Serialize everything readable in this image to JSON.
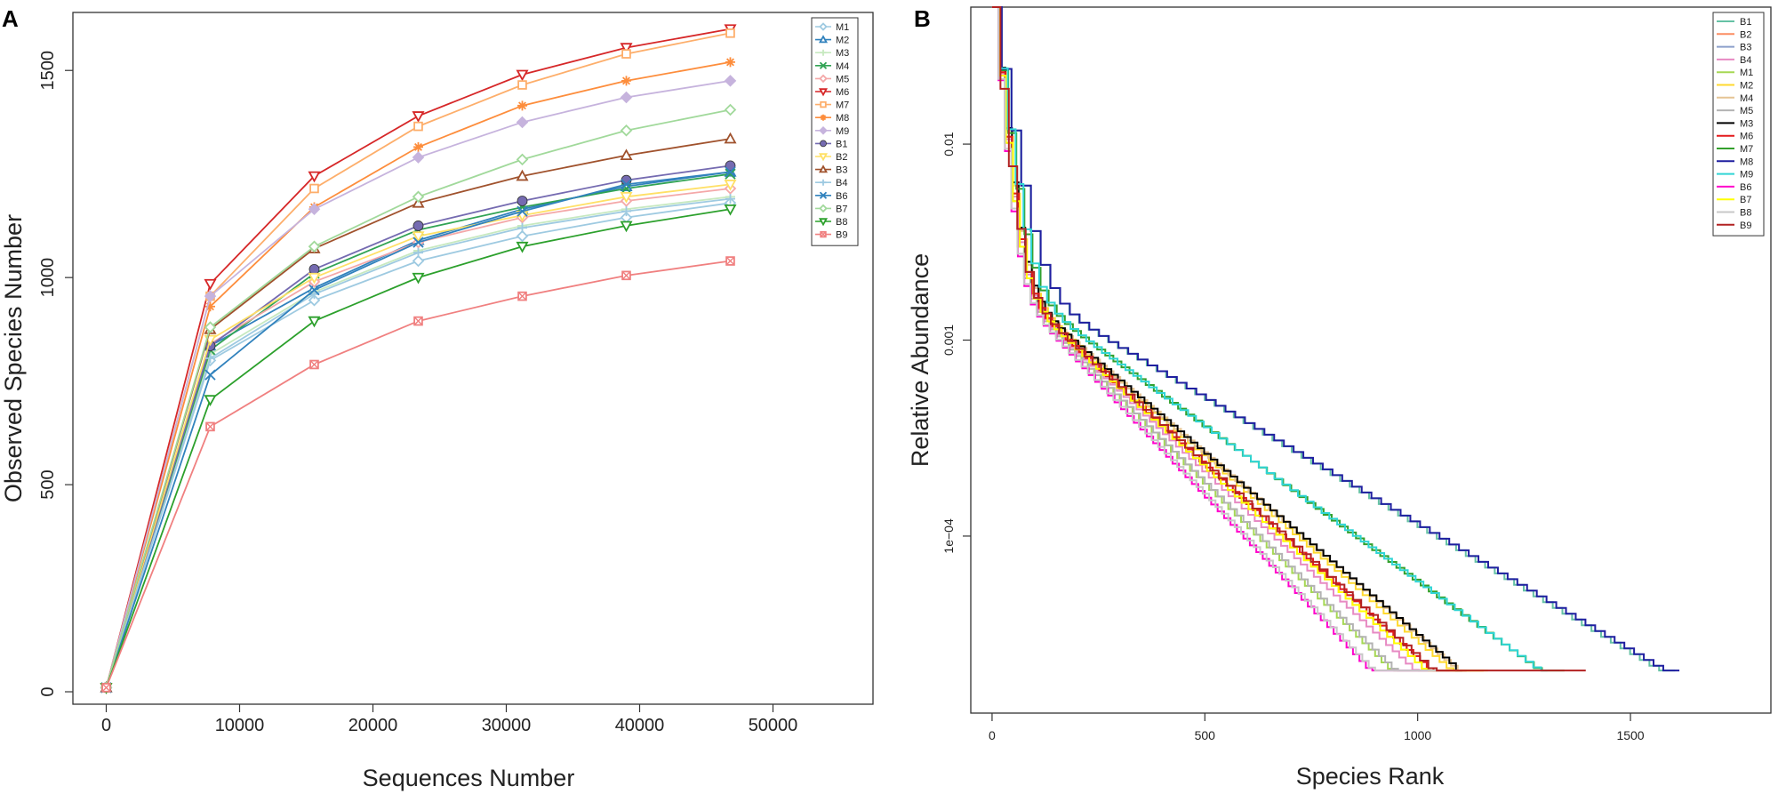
{
  "chart_data": [
    {
      "panel_label": "A",
      "type": "line",
      "xlabel": "Sequences Number",
      "ylabel": "Observed Species Number",
      "xlim": [
        -2500,
        57500
      ],
      "ylim": [
        -30,
        1640
      ],
      "xticks": [
        0,
        10000,
        20000,
        30000,
        40000,
        50000
      ],
      "xtick_labels": [
        "0",
        "10000",
        "20000",
        "30000",
        "40000",
        "50000"
      ],
      "yticks": [
        0,
        500,
        1000,
        1500
      ],
      "ytick_labels": [
        "0",
        "500",
        "1000",
        "1500"
      ],
      "legend_position": "top-right",
      "x": [
        0,
        7800,
        15600,
        23400,
        31200,
        39000,
        46800
      ],
      "series": [
        {
          "name": "M1",
          "color": "#9ecae1",
          "marker": "diamond-open",
          "values": [
            10,
            800,
            945,
            1040,
            1100,
            1145,
            1180
          ]
        },
        {
          "name": "M2",
          "color": "#3182bd",
          "marker": "triangle-open",
          "values": [
            10,
            835,
            975,
            1090,
            1165,
            1220,
            1255
          ]
        },
        {
          "name": "M3",
          "color": "#c7e9c0",
          "marker": "plus",
          "values": [
            10,
            815,
            965,
            1065,
            1125,
            1165,
            1195
          ]
        },
        {
          "name": "M4",
          "color": "#31a354",
          "marker": "x",
          "values": [
            10,
            825,
            1010,
            1115,
            1170,
            1215,
            1250
          ]
        },
        {
          "name": "M5",
          "color": "#f4a8a8",
          "marker": "diamond-open",
          "values": [
            10,
            840,
            990,
            1085,
            1145,
            1185,
            1215
          ]
        },
        {
          "name": "M6",
          "color": "#d62728",
          "marker": "triangle-down-open",
          "values": [
            10,
            985,
            1245,
            1390,
            1490,
            1555,
            1600
          ]
        },
        {
          "name": "M7",
          "color": "#fdae6b",
          "marker": "square-open",
          "values": [
            10,
            955,
            1215,
            1365,
            1465,
            1540,
            1590
          ]
        },
        {
          "name": "M8",
          "color": "#fd8d3c",
          "marker": "asterisk",
          "values": [
            10,
            930,
            1170,
            1315,
            1415,
            1475,
            1520
          ]
        },
        {
          "name": "M9",
          "color": "#c6b3dd",
          "marker": "diamond-filled",
          "values": [
            10,
            955,
            1165,
            1290,
            1375,
            1435,
            1475
          ]
        },
        {
          "name": "B1",
          "color": "#756bb1",
          "marker": "circle-filled",
          "values": [
            10,
            835,
            1020,
            1125,
            1185,
            1235,
            1270
          ]
        },
        {
          "name": "B2",
          "color": "#ffe066",
          "marker": "triangle-down-open",
          "values": [
            10,
            850,
            1000,
            1100,
            1150,
            1195,
            1225
          ]
        },
        {
          "name": "B3",
          "color": "#a0522d",
          "marker": "triangle-open",
          "values": [
            10,
            875,
            1070,
            1180,
            1245,
            1295,
            1335
          ]
        },
        {
          "name": "B4",
          "color": "#9ecae1",
          "marker": "plus",
          "values": [
            10,
            805,
            960,
            1060,
            1120,
            1160,
            1190
          ]
        },
        {
          "name": "B6",
          "color": "#3182bd",
          "marker": "x",
          "values": [
            10,
            765,
            970,
            1085,
            1160,
            1225,
            1255
          ]
        },
        {
          "name": "B7",
          "color": "#a1d99b",
          "marker": "diamond-open",
          "values": [
            10,
            880,
            1075,
            1195,
            1285,
            1355,
            1405
          ]
        },
        {
          "name": "B8",
          "color": "#2ca02c",
          "marker": "triangle-down-open",
          "values": [
            10,
            705,
            895,
            1000,
            1075,
            1125,
            1165
          ]
        },
        {
          "name": "B9",
          "color": "#f08080",
          "marker": "square-x",
          "values": [
            10,
            640,
            790,
            895,
            955,
            1005,
            1040
          ]
        }
      ]
    },
    {
      "panel_label": "B",
      "type": "line",
      "xlabel": "Species Rank",
      "ylabel": "Relative Abundance",
      "y_scale": "log",
      "xlim": [
        -50,
        1830
      ],
      "ylim": [
        1.25e-05,
        0.05
      ],
      "xticks": [
        0,
        500,
        1000,
        1500
      ],
      "xtick_labels": [
        "0",
        "500",
        "1000",
        "1500"
      ],
      "yticks": [
        0.01,
        0.001,
        0.0001
      ],
      "ytick_labels": [
        "0.01",
        "0.001",
        "1e−04"
      ],
      "legend_position": "top-right",
      "n_points": 70,
      "series": [
        {
          "name": "B1",
          "color": "#66c2a5",
          "max_rank": 1590,
          "steepness": 0.95
        },
        {
          "name": "B2",
          "color": "#fc8d62",
          "max_rank": 1140,
          "steepness": 1.05
        },
        {
          "name": "B3",
          "color": "#8da0cb",
          "max_rank": 1100,
          "steepness": 1.0
        },
        {
          "name": "B4",
          "color": "#e78ac3",
          "max_rank": 1080,
          "steepness": 1.02
        },
        {
          "name": "M1",
          "color": "#a6d854",
          "max_rank": 1050,
          "steepness": 1.05
        },
        {
          "name": "M2",
          "color": "#ffd92f",
          "max_rank": 1150,
          "steepness": 1.0
        },
        {
          "name": "M4",
          "color": "#e5c494",
          "max_rank": 1110,
          "steepness": 0.95
        },
        {
          "name": "M5",
          "color": "#b3b3b3",
          "max_rank": 1060,
          "steepness": 1.05
        },
        {
          "name": "M3",
          "color": "#000000",
          "max_rank": 1090,
          "steepness": 0.93
        },
        {
          "name": "M6",
          "color": "#e41a1c",
          "max_rank": 1100,
          "steepness": 1.0
        },
        {
          "name": "M7",
          "color": "#33a02c",
          "max_rank": 1330,
          "steepness": 0.97
        },
        {
          "name": "M8",
          "color": "#1f1fa0",
          "max_rank": 1600,
          "steepness": 0.95
        },
        {
          "name": "M9",
          "color": "#30d5d5",
          "max_rank": 1290,
          "steepness": 0.94
        },
        {
          "name": "B6",
          "color": "#ff00cc",
          "max_rank": 1060,
          "steepness": 1.12
        },
        {
          "name": "B7",
          "color": "#ffff00",
          "max_rank": 1140,
          "steepness": 1.05
        },
        {
          "name": "B8",
          "color": "#c8c8c8",
          "max_rank": 1050,
          "steepness": 1.1
        },
        {
          "name": "B9",
          "color": "#b22222",
          "max_rank": 1380,
          "steepness": 1.25
        }
      ]
    }
  ]
}
